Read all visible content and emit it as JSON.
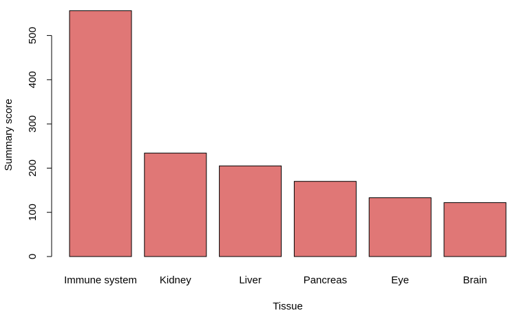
{
  "chart_data": {
    "type": "bar",
    "categories": [
      "Immune system",
      "Kidney",
      "Liver",
      "Pancreas",
      "Eye",
      "Brain"
    ],
    "values": [
      556,
      234,
      205,
      170,
      133,
      122
    ],
    "xlabel": "Tissue",
    "ylabel": "Summary score",
    "yticks": [
      0,
      100,
      200,
      300,
      400,
      500
    ],
    "ylim": [
      0,
      556
    ],
    "grid": false,
    "legend": "none",
    "bar_color": "#e07776",
    "bar_border_color": "#000000"
  }
}
